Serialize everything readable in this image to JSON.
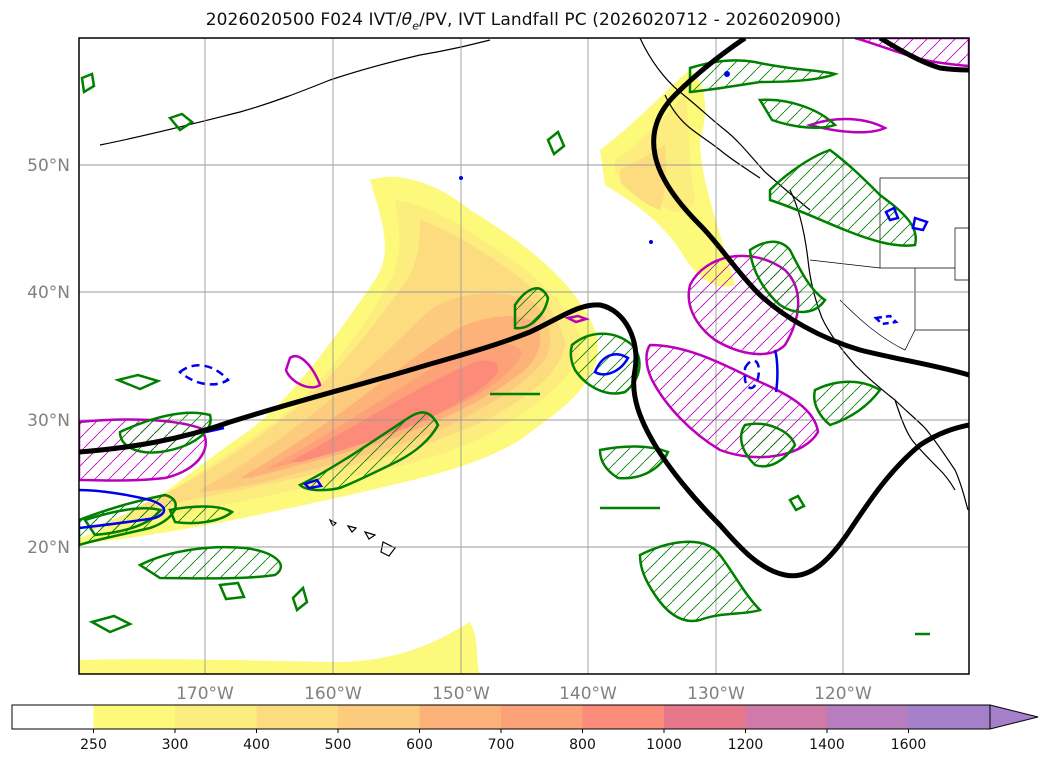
{
  "title_parts": {
    "prefix": "2026020500 F024 IVT/",
    "theta": "θ",
    "sub": "e",
    "suffix": "/PV, IVT Landfall PC (2026020712 - 2026020900)"
  },
  "axes": {
    "lat_labels": [
      "50°N",
      "40°N",
      "30°N",
      "20°N"
    ],
    "lon_labels": [
      "170°W",
      "160°W",
      "150°W",
      "140°W",
      "130°W",
      "120°W"
    ]
  },
  "colorbar": {
    "ticks": [
      "250",
      "300",
      "400",
      "500",
      "600",
      "700",
      "800",
      "1000",
      "1200",
      "1400",
      "1600"
    ],
    "colors": [
      "#ffffff",
      "#fdf97a",
      "#fdec7e",
      "#fddc7f",
      "#fdcb7d",
      "#fdb279",
      "#fda278",
      "#fc8b7a",
      "#e7788c",
      "#cf7aa8",
      "#b77ebf",
      "#a380c9"
    ]
  },
  "legend_colors": {
    "ivt_fill_yellow": "#fdf97a",
    "pv_contour": "#008000",
    "theta_contour": "#bb00bb",
    "neg_contour": "#0000ee",
    "composite_line": "#000000"
  }
}
